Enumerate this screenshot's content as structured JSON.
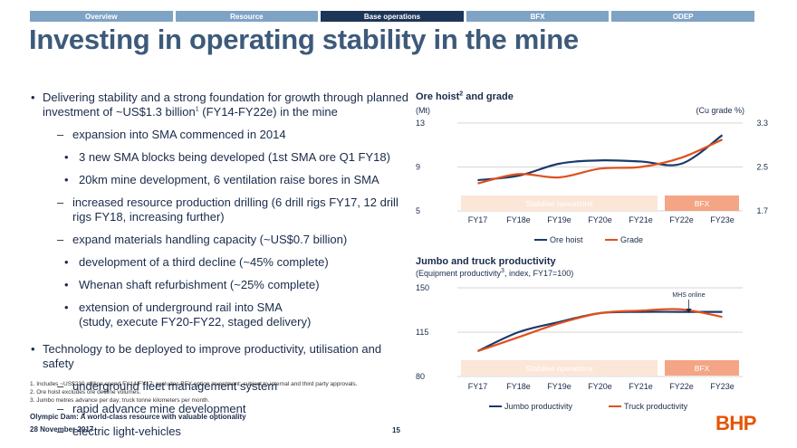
{
  "nav": {
    "tabs": [
      {
        "label": "Overview",
        "active": false
      },
      {
        "label": "Resource",
        "active": false
      },
      {
        "label": "Base operations",
        "active": true
      },
      {
        "label": "BFX",
        "active": false
      },
      {
        "label": "ODEP",
        "active": false
      }
    ]
  },
  "title": "Investing in operating stability in the mine",
  "bullets": {
    "b1_pre": "Delivering stability and a strong foundation for growth through planned investment of ~US$1.3 billion",
    "b1_sup": "1",
    "b1_post": " (FY14-FY22e) in the mine",
    "b1_1": "expansion into SMA commenced in 2014",
    "b1_1_1": "3 new SMA blocks being developed (1st SMA ore Q1 FY18)",
    "b1_1_2": "20km mine development, 6 ventilation raise bores in SMA",
    "b1_2": "increased resource production drilling (6 drill rigs FY17, 12 drill rigs FY18, increasing further)",
    "b1_3": "expand materials handling capacity (~US$0.7 billion)",
    "b1_3_1": "development of a third decline (~45% complete)",
    "b1_3_2": "Whenan shaft refurbishment (~25% complete)",
    "b1_3_3a": "extension of underground rail into SMA",
    "b1_3_3b": "(study, execute FY20-FY22, staged delivery)",
    "b2": "Technology to be deployed to improve productivity, utilisation and safety",
    "b2_1": "underground fleet management system",
    "b2_2": "rapid advance mine development",
    "b2_3": "electric light-vehicles",
    "bullet_char": "•",
    "dash_char": "–"
  },
  "footnotes": [
    "1.  Includes ~US$230 million spend FY14-FY17; excludes BFX option investment; subject to internal and third party approvals.",
    "2.  Ore hoist excludes ore decline volumes.",
    "3.  Jumbo metres advance per day; truck tonne kilometers per month."
  ],
  "footer": {
    "title": "Olympic Dam: A world-class resource with valuable optionality",
    "date": "28 November 2017",
    "page": "15",
    "logo": "BHP"
  },
  "colors": {
    "navy": "#1a3a6b",
    "orange": "#e0501e",
    "band_peach": "#fbe6d8",
    "band_orange": "#f4a585"
  },
  "chart_data": [
    {
      "type": "line",
      "title_pre": "Ore hoist",
      "title_sup": "2",
      "title_post": " and grade",
      "y_unit": "(Mt)",
      "y2_unit": "(Cu grade %)",
      "categories": [
        "FY17",
        "FY18e",
        "FY19e",
        "FY20e",
        "FY21e",
        "FY22e",
        "FY23e"
      ],
      "ylim": [
        5,
        13
      ],
      "y2lim": [
        1.7,
        3.3
      ],
      "yticks": [
        "13",
        "9",
        "5"
      ],
      "y2ticks": [
        "3.3",
        "2.5",
        "1.7"
      ],
      "series": [
        {
          "name": "Ore hoist",
          "axis": "left",
          "values": [
            7.8,
            8.2,
            9.3,
            9.6,
            9.5,
            9.3,
            11.9
          ]
        },
        {
          "name": "Grade",
          "axis": "right",
          "values": [
            2.2,
            2.37,
            2.31,
            2.47,
            2.5,
            2.67,
            3.0
          ]
        }
      ],
      "bands": [
        {
          "label": "Stabilise operations",
          "from_index": 0,
          "to_index": 4
        },
        {
          "label": "BFX",
          "from_index": 5,
          "to_index": 6
        }
      ]
    },
    {
      "type": "line",
      "title": "Jumbo and truck productivity",
      "subtitle_pre": "(Equipment productivity",
      "subtitle_sup": "3",
      "subtitle_post": ", index, FY17=100)",
      "categories": [
        "FY17",
        "FY18e",
        "FY19e",
        "FY20e",
        "FY21e",
        "FY22e",
        "FY23e"
      ],
      "ylim": [
        80,
        150
      ],
      "yticks": [
        "150",
        "115",
        "80"
      ],
      "series": [
        {
          "name": "Jumbo productivity",
          "values": [
            100,
            115,
            123,
            130,
            131,
            131,
            131
          ]
        },
        {
          "name": "Truck productivity",
          "values": [
            100,
            111,
            122,
            130,
            132,
            133,
            127
          ]
        }
      ],
      "annotation": "MHS online",
      "bands": [
        {
          "label": "Stabilise operations",
          "from_index": 0,
          "to_index": 4
        },
        {
          "label": "BFX",
          "from_index": 5,
          "to_index": 6
        }
      ]
    }
  ]
}
